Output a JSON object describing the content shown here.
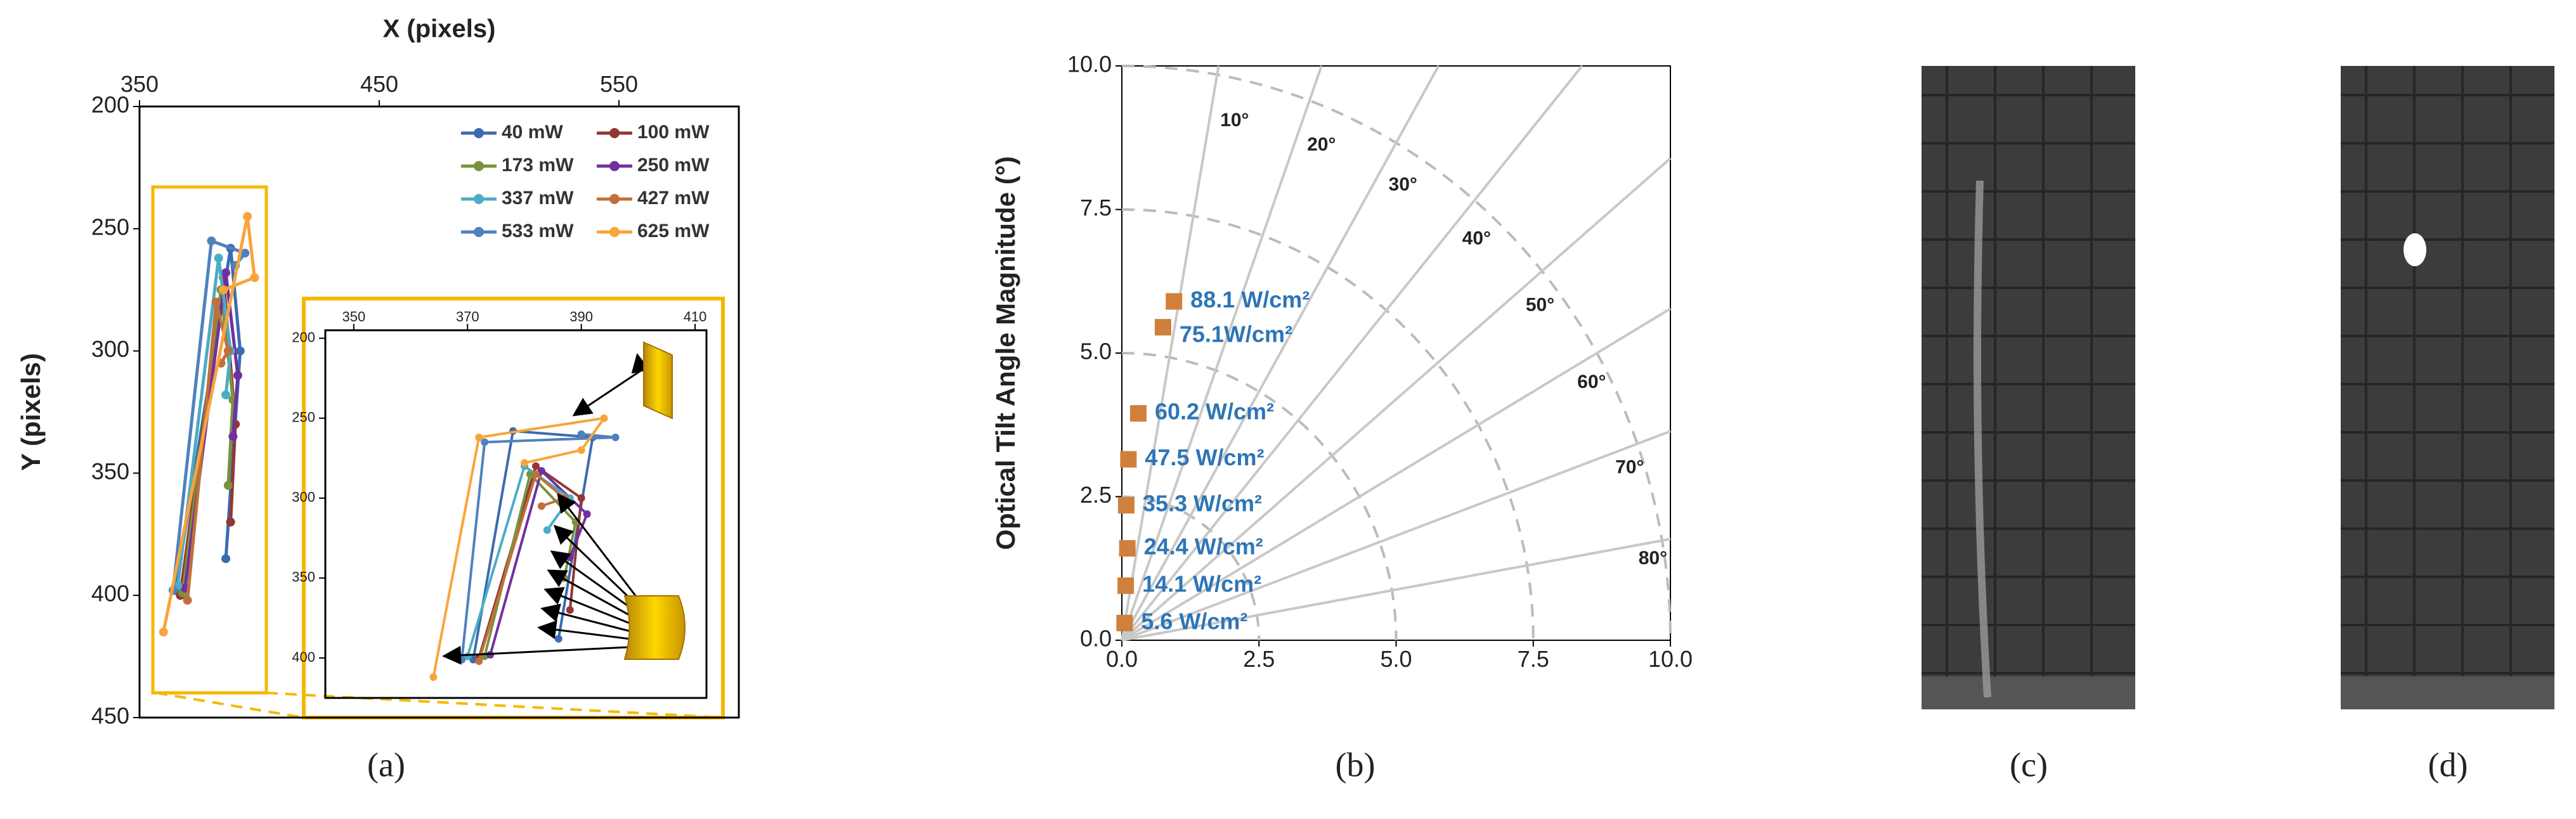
{
  "chart_data": [
    {
      "type": "line",
      "xlabel": "X (pixels)",
      "ylabel": "Y (pixels)",
      "xlim": [
        350,
        600
      ],
      "xticks": [
        350,
        450,
        550
      ],
      "ylim": [
        200,
        450
      ],
      "yticks": [
        200,
        250,
        300,
        350,
        400,
        450
      ],
      "y_inverted": true,
      "x_axis_position": "top",
      "legend": "upper right",
      "series": [
        {
          "name": "40 mW",
          "color": "#3b6bb0",
          "x": [
            365,
            388,
            392,
            386
          ],
          "values": [
            398,
            258,
            300,
            385
          ]
        },
        {
          "name": "100 mW",
          "color": "#943634",
          "x": [
            367,
            385,
            390,
            388
          ],
          "values": [
            400,
            270,
            330,
            370
          ]
        },
        {
          "name": "173 mW",
          "color": "#77933c",
          "x": [
            368,
            384,
            389,
            387
          ],
          "values": [
            399,
            275,
            320,
            355
          ]
        },
        {
          "name": "250 mW",
          "color": "#7030a0",
          "x": [
            369,
            386,
            391,
            389
          ],
          "values": [
            397,
            268,
            310,
            335
          ]
        },
        {
          "name": "337 mW",
          "color": "#4bacc6",
          "x": [
            366,
            383,
            388,
            386
          ],
          "values": [
            396,
            262,
            300,
            318
          ]
        },
        {
          "name": "427 mW",
          "color": "#c0703a",
          "x": [
            370,
            382,
            387,
            384
          ],
          "values": [
            402,
            280,
            300,
            305
          ]
        },
        {
          "name": "533 mW",
          "color": "#4f81bd",
          "x": [
            364,
            380,
            394,
            390
          ],
          "values": [
            398,
            255,
            260,
            265
          ]
        },
        {
          "name": "625 mW",
          "color": "#f9a43a",
          "x": [
            360,
            395,
            398,
            385
          ],
          "values": [
            415,
            245,
            270,
            275
          ]
        }
      ]
    },
    {
      "type": "line",
      "xlim": [
        345,
        412
      ],
      "xticks": [
        350,
        370,
        390,
        410
      ],
      "ylim": [
        195,
        425
      ],
      "yticks": [
        200,
        250,
        300,
        350,
        400
      ],
      "y_inverted": true,
      "x_axis_position": "top",
      "series": [
        {
          "color": "#3b6bb0",
          "x": [
            371,
            378,
            392,
            386
          ],
          "values": [
            401,
            258,
            262,
            388
          ]
        },
        {
          "color": "#943634",
          "x": [
            372,
            382,
            390,
            388
          ],
          "values": [
            400,
            280,
            300,
            370
          ]
        },
        {
          "color": "#77933c",
          "x": [
            373,
            381,
            389,
            387
          ],
          "values": [
            399,
            285,
            315,
            350
          ]
        },
        {
          "color": "#7030a0",
          "x": [
            374,
            383,
            391,
            388
          ],
          "values": [
            398,
            283,
            310,
            337
          ]
        },
        {
          "color": "#4bacc6",
          "x": [
            370,
            380,
            388,
            384
          ],
          "values": [
            399,
            280,
            300,
            320
          ]
        },
        {
          "color": "#c0703a",
          "x": [
            372,
            382,
            387,
            383
          ],
          "values": [
            402,
            285,
            300,
            305
          ]
        },
        {
          "color": "#4f81bd",
          "x": [
            369,
            373,
            396,
            390
          ],
          "values": [
            401,
            265,
            262,
            260
          ]
        },
        {
          "color": "#f9a43a",
          "x": [
            364,
            372,
            394,
            390,
            380
          ],
          "values": [
            412,
            262,
            250,
            270,
            278
          ]
        }
      ]
    },
    {
      "type": "scatter",
      "ylabel": "Optical Tilt Angle Magnitude  (°)",
      "color": "#d0803c",
      "label_color": "#2e75b6",
      "xlim": [
        0,
        10
      ],
      "ylim": [
        0,
        10
      ],
      "xticks": [
        {
          "value": 0,
          "label": "0.0"
        },
        {
          "value": 2.5,
          "label": "2.5"
        },
        {
          "value": 5,
          "label": "5.0"
        },
        {
          "value": 7.5,
          "label": "7.5"
        },
        {
          "value": 10,
          "label": "10.0"
        }
      ],
      "yticks": [
        {
          "value": 0,
          "label": "0.0"
        },
        {
          "value": 2.5,
          "label": "2.5"
        },
        {
          "value": 5,
          "label": "5.0"
        },
        {
          "value": 7.5,
          "label": "7.5"
        },
        {
          "value": 10,
          "label": "10.0"
        }
      ],
      "x": [
        0.05,
        0.07,
        0.1,
        0.08,
        0.12,
        0.3,
        0.75,
        0.95
      ],
      "values": [
        0.3,
        0.95,
        1.6,
        2.35,
        3.15,
        3.95,
        5.45,
        5.9
      ],
      "value_labels": [
        "5.6 W/cm²",
        "14.1 W/cm²",
        "24.4 W/cm²",
        "35.3 W/cm²",
        "47.5 W/cm²",
        "60.2 W/cm²",
        "75.1W/cm²",
        "88.1 W/cm²"
      ],
      "radial_angles": [
        {
          "value": 10,
          "label": "10°"
        },
        {
          "value": 20,
          "label": "20°"
        },
        {
          "value": 30,
          "label": "30°"
        },
        {
          "value": 40,
          "label": "40°"
        },
        {
          "value": 50,
          "label": "50°"
        },
        {
          "value": 60,
          "label": "60°"
        },
        {
          "value": 70,
          "label": "70°"
        },
        {
          "value": 80,
          "label": "80°"
        }
      ],
      "arc_radii": [
        2.5,
        5,
        7.5,
        10
      ]
    }
  ],
  "captions": [
    "(a)",
    "(b)",
    "(c)",
    "(d)"
  ]
}
